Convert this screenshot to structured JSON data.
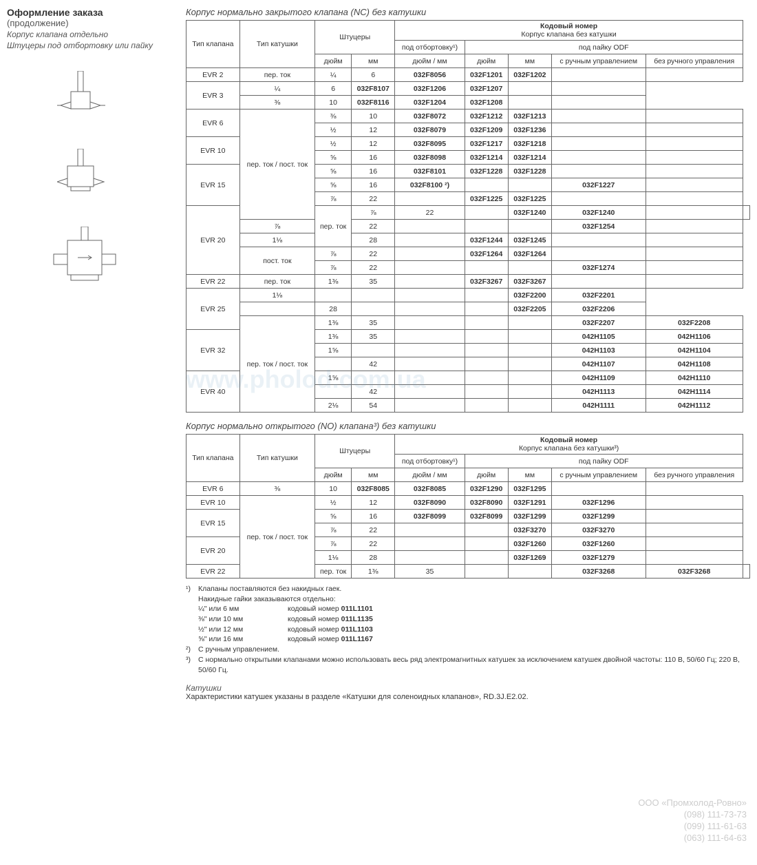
{
  "left": {
    "title": "Оформление заказа",
    "subtitle": "(продолжение)",
    "line1": "Корпус клапана отдельно",
    "line2": "Штуцеры под отбортовку или пайку"
  },
  "table1": {
    "title": "Корпус нормально закрытого клапана (NC) без катушки",
    "headers": {
      "valve_type": "Тип клапана",
      "coil_type": "Тип катушки",
      "connections": "Штуцеры",
      "code": "Кодовый номер",
      "code_sub": "Корпус клапана без катушки",
      "flare": "под отбортовку¹)",
      "odf": "под пайку ODF",
      "inch": "дюйм",
      "mm": "мм",
      "inch_mm": "дюйм / мм",
      "manual": "с ручным управлением",
      "no_manual": "без ручного управления"
    }
  },
  "coil_ac": "пер. ток",
  "coil_acdc": "пер. ток / пост. ток",
  "coil_dc": "пост. ток",
  "rows1": [
    {
      "vt": "EVR 2",
      "ct": "пер. ток",
      "rs_vt": 1,
      "rs_ct": 1,
      "in": "¼",
      "mm": "6",
      "c1": "032F8056",
      "c2": "032F1201",
      "c3": "032F1202",
      "c4": "",
      "c5": ""
    },
    {
      "vt": "EVR 3",
      "ct": "",
      "rs_vt": 2,
      "rs_ct": 0,
      "in": "¼",
      "mm": "6",
      "c1": "032F8107",
      "c2": "032F1206",
      "c3": "032F1207",
      "c4": "",
      "c5": ""
    },
    {
      "vt": "",
      "ct": "",
      "rs_vt": 0,
      "rs_ct": 0,
      "in": "⅜",
      "mm": "10",
      "c1": "032F8116",
      "c2": "032F1204",
      "c3": "032F1208",
      "c4": "",
      "c5": ""
    },
    {
      "vt": "EVR 6",
      "ct": "пер. ток / пост. ток",
      "rs_vt": 2,
      "rs_ct": 8,
      "in": "⅜",
      "mm": "10",
      "c1": "032F8072",
      "c2": "032F1212",
      "c3": "032F1213",
      "c4": "",
      "c5": ""
    },
    {
      "vt": "",
      "ct": "",
      "rs_vt": 0,
      "rs_ct": 0,
      "in": "½",
      "mm": "12",
      "c1": "032F8079",
      "c2": "032F1209",
      "c3": "032F1236",
      "c4": "",
      "c5": ""
    },
    {
      "vt": "EVR 10",
      "ct": "",
      "rs_vt": 2,
      "rs_ct": 0,
      "in": "½",
      "mm": "12",
      "c1": "032F8095",
      "c2": "032F1217",
      "c3": "032F1218",
      "c4": "",
      "c5": ""
    },
    {
      "vt": "",
      "ct": "",
      "rs_vt": 0,
      "rs_ct": 0,
      "in": "⅝",
      "mm": "16",
      "c1": "032F8098",
      "c2": "032F1214",
      "c3": "032F1214",
      "c4": "",
      "c5": ""
    },
    {
      "vt": "EVR 15",
      "ct": "",
      "rs_vt": 3,
      "rs_ct": 0,
      "in": "⅝",
      "mm": "16",
      "c1": "032F8101",
      "c2": "032F1228",
      "c3": "032F1228",
      "c4": "",
      "c5": ""
    },
    {
      "vt": "",
      "ct": "",
      "rs_vt": 0,
      "rs_ct": 0,
      "in": "⅝",
      "mm": "16",
      "c1": "032F8100 ²)",
      "c2": "",
      "c3": "",
      "c4": "032F1227",
      "c5": ""
    },
    {
      "vt": "",
      "ct": "",
      "rs_vt": 0,
      "rs_ct": 0,
      "in": "⅞",
      "mm": "22",
      "c1": "",
      "c2": "032F1225",
      "c3": "032F1225",
      "c4": "",
      "c5": ""
    },
    {
      "vt": "EVR 20",
      "ct": "пер. ток",
      "rs_vt": 5,
      "rs_ct": 3,
      "in": "⅞",
      "mm": "22",
      "c1": "",
      "c2": "032F1240",
      "c3": "032F1240",
      "c4": "",
      "c5": ""
    },
    {
      "vt": "",
      "ct": "",
      "rs_vt": 0,
      "rs_ct": 0,
      "in": "⅞",
      "mm": "22",
      "c1": "",
      "c2": "",
      "c3": "",
      "c4": "032F1254",
      "c5": ""
    },
    {
      "vt": "",
      "ct": "",
      "rs_vt": 0,
      "rs_ct": 0,
      "in": "1⅛",
      "mm": "28",
      "c1": "",
      "c2": "032F1244",
      "c3": "032F1245",
      "c4": "",
      "c5": ""
    },
    {
      "vt": "",
      "ct": "пост. ток",
      "rs_vt": 0,
      "rs_ct": 2,
      "in": "⅞",
      "mm": "22",
      "c1": "",
      "c2": "032F1264",
      "c3": "032F1264",
      "c4": "",
      "c5": ""
    },
    {
      "vt": "",
      "ct": "",
      "rs_vt": 0,
      "rs_ct": 0,
      "in": "⅞",
      "mm": "22",
      "c1": "",
      "c2": "",
      "c3": "",
      "c4": "032F1274",
      "c5": ""
    },
    {
      "vt": "EVR 22",
      "ct": "пер. ток",
      "rs_vt": 1,
      "rs_ct": 1,
      "in": "1⅜",
      "mm": "35",
      "c1": "",
      "c2": "032F3267",
      "c3": "032F3267",
      "c4": "",
      "c5": ""
    },
    {
      "vt": "EVR 25",
      "ct": "",
      "rs_vt": 3,
      "rs_ct": 0,
      "in": "1⅛",
      "mm": "",
      "c1": "",
      "c2": "",
      "c3": "",
      "c4": "032F2200",
      "c5": "032F2201"
    },
    {
      "vt": "",
      "ct": "",
      "rs_vt": 0,
      "rs_ct": 0,
      "in": "",
      "mm": "28",
      "c1": "",
      "c2": "",
      "c3": "",
      "c4": "032F2205",
      "c5": "032F2206"
    },
    {
      "vt": "",
      "ct": "пер. ток / пост. ток",
      "rs_vt": 0,
      "rs_ct": 8,
      "in": "1⅜",
      "mm": "35",
      "c1": "",
      "c2": "",
      "c3": "",
      "c4": "032F2207",
      "c5": "032F2208"
    },
    {
      "vt": "EVR 32",
      "ct": "",
      "rs_vt": 3,
      "rs_ct": 0,
      "in": "1⅜",
      "mm": "35",
      "c1": "",
      "c2": "",
      "c3": "",
      "c4": "042H1105",
      "c5": "042H1106"
    },
    {
      "vt": "",
      "ct": "",
      "rs_vt": 0,
      "rs_ct": 0,
      "in": "1⅝",
      "mm": "",
      "c1": "",
      "c2": "",
      "c3": "",
      "c4": "042H1103",
      "c5": "042H1104"
    },
    {
      "vt": "",
      "ct": "",
      "rs_vt": 0,
      "rs_ct": 0,
      "in": "",
      "mm": "42",
      "c1": "",
      "c2": "",
      "c3": "",
      "c4": "042H1107",
      "c5": "042H1108"
    },
    {
      "vt": "EVR 40",
      "ct": "",
      "rs_vt": 3,
      "rs_ct": 0,
      "in": "1⅝",
      "mm": "",
      "c1": "",
      "c2": "",
      "c3": "",
      "c4": "042H1109",
      "c5": "042H1110"
    },
    {
      "vt": "",
      "ct": "",
      "rs_vt": 0,
      "rs_ct": 0,
      "in": "",
      "mm": "42",
      "c1": "",
      "c2": "",
      "c3": "",
      "c4": "042H1113",
      "c5": "042H1114"
    },
    {
      "vt": "",
      "ct": "",
      "rs_vt": 0,
      "rs_ct": 0,
      "in": "2⅛",
      "mm": "54",
      "c1": "",
      "c2": "",
      "c3": "",
      "c4": "042H1111",
      "c5": "042H1112"
    }
  ],
  "table2": {
    "title": "Корпус нормально открытого (NO) клапана³) без катушки",
    "code_sub": "Корпус клапана без катушки³)"
  },
  "rows2": [
    {
      "vt": "EVR 6",
      "ct": "",
      "rs_vt": 1,
      "rs_ct": 0,
      "in": "⅜",
      "mm": "10",
      "c1": "032F8085",
      "c2": "032F8085",
      "c3": "032F1290",
      "c4": "032F1295",
      "c5": ""
    },
    {
      "vt": "EVR 10",
      "ct": "пер. ток / пост. ток",
      "rs_vt": 1,
      "rs_ct": 6,
      "in": "½",
      "mm": "12",
      "c1": "032F8090",
      "c2": "032F8090",
      "c3": "032F1291",
      "c4": "032F1296",
      "c5": ""
    },
    {
      "vt": "EVR 15",
      "ct": "",
      "rs_vt": 2,
      "rs_ct": 0,
      "in": "⅝",
      "mm": "16",
      "c1": "032F8099",
      "c2": "032F8099",
      "c3": "032F1299",
      "c4": "032F1299",
      "c5": ""
    },
    {
      "vt": "",
      "ct": "",
      "rs_vt": 0,
      "rs_ct": 0,
      "in": "⅞",
      "mm": "22",
      "c1": "",
      "c2": "",
      "c3": "032F3270",
      "c4": "032F3270",
      "c5": ""
    },
    {
      "vt": "EVR 20",
      "ct": "",
      "rs_vt": 2,
      "rs_ct": 0,
      "in": "⅞",
      "mm": "22",
      "c1": "",
      "c2": "",
      "c3": "032F1260",
      "c4": "032F1260",
      "c5": ""
    },
    {
      "vt": "",
      "ct": "",
      "rs_vt": 0,
      "rs_ct": 0,
      "in": "1⅛",
      "mm": "28",
      "c1": "",
      "c2": "",
      "c3": "032F1269",
      "c4": "032F1279",
      "c5": ""
    },
    {
      "vt": "EVR 22",
      "ct": "пер. ток",
      "rs_vt": 1,
      "rs_ct": 1,
      "in": "1⅜",
      "mm": "35",
      "c1": "",
      "c2": "",
      "c3": "032F3268",
      "c4": "032F3268",
      "c5": ""
    }
  ],
  "footnotes": {
    "fn1": "Клапаны поставляются без накидных гаек.",
    "fn1b": "Накидные гайки заказываются отдельно:",
    "nuts": [
      {
        "size": "¼\" или 6 мм",
        "label": "кодовый номер",
        "code": "011L1101"
      },
      {
        "size": "⅜\" или 10 мм",
        "label": "кодовый номер",
        "code": "011L1135"
      },
      {
        "size": "½\" или 12 мм",
        "label": "кодовый номер",
        "code": "011L1103"
      },
      {
        "size": "⅝\" или 16 мм",
        "label": "кодовый номер",
        "code": "011L1167"
      }
    ],
    "fn2": "С ручным управлением.",
    "fn3": "С нормально открытыми клапанами можно использовать весь ряд электромагнитных катушек за исключением катушек двойной частоты: 110 В, 50/60 Гц; 220 В, 50/60 Гц."
  },
  "bottom": {
    "coils_title": "Катушки",
    "coils_text": "Характеристики катушек указаны в разделе «Катушки для соленоидных клапанов», RD.3J.E2.02."
  },
  "company": {
    "name": "ООО «Промхолод-Ровно»",
    "p1": "(098) 111-73-73",
    "p2": "(099) 111-61-63",
    "p3": "(063) 111-64-63"
  },
  "watermark": "www.pholod.com.ua"
}
